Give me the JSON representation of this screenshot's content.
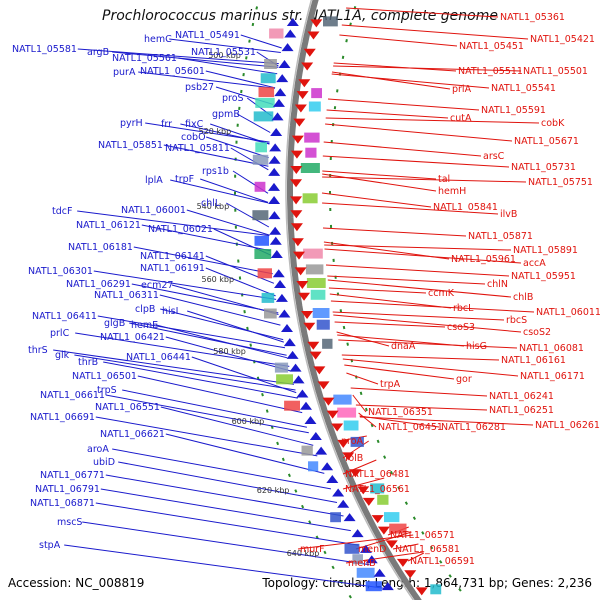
{
  "title": "Prochlorococcus marinus str. NATL1A, complete genome",
  "footer": {
    "accession": "Accession: NC_008819",
    "stats": "Topology: circular; Length: 1,864,731 bp; Genes: 2,236"
  },
  "colors": {
    "forward": "#1a1acc",
    "reverse": "#e0140e",
    "backbone": "#7a7a7a",
    "tick": "#2a8a2a"
  },
  "kbp_markers": [
    "500 kbp",
    "520 kbp",
    "540 kbp",
    "560 kbp",
    "580 kbp",
    "600 kbp",
    "620 kbp",
    "640 kbp"
  ],
  "forward_labels": [
    "NATL1_05491",
    "hemC",
    "NATL1_05531",
    "NATL1_05581",
    "argB",
    "NATL1_05561",
    "purA",
    "NATL1_05601",
    "psb27",
    "proS",
    "gpmB",
    "pyrH",
    "frr",
    "fixC",
    "cobO",
    "NATL1_05851",
    "NATL1_05811",
    "rps1b",
    "lplA",
    "trpF",
    "chlL",
    "tdcF",
    "NATL1_06001",
    "NATL1_06121",
    "NATL1_06021",
    "NATL1_06181",
    "NATL1_06141",
    "NATL1_06191",
    "NATL1_06301",
    "NATL1_06291",
    "ecm27",
    "NATL1_06311",
    "clpB",
    "hisI",
    "NATL1_06411",
    "glgB",
    "hemE",
    "prlC",
    "NATL1_06421",
    "thrS",
    "glk",
    "NATL1_06441",
    "thrB",
    "NATL1_06501",
    "trpS",
    "NATL1_06611",
    "NATL1_06551",
    "NATL1_06691",
    "NATL1_06621",
    "aroA",
    "ubiD",
    "NATL1_06771",
    "NATL1_06791",
    "NATL1_06871",
    "mscS",
    "stpA"
  ],
  "reverse_labels": [
    "NATL1_05361",
    "NATL1_05421",
    "NATL1_05451",
    "NATL1_05511",
    "NATL1_05501",
    "prlA",
    "NATL1_05541",
    "NATL1_05591",
    "cutA",
    "cobK",
    "NATL1_05671",
    "arsC",
    "NATL1_05731",
    "tal",
    "NATL1_05751",
    "hemH",
    "NATL1_05841",
    "ilvB",
    "NATL1_05871",
    "NATL1_05891",
    "NATL1_05961",
    "accA",
    "NATL1_05951",
    "chlN",
    "ccmK",
    "chlB",
    "rbcL",
    "NATL1_06011",
    "rbcS",
    "csoS3",
    "csoS2",
    "dnaA",
    "hisG",
    "NATL1_06081",
    "NATL1_06161",
    "NATL1_06171",
    "gor",
    "trpA",
    "NATL1_06241",
    "NATL1_06251",
    "NATL1_06351",
    "NATL1_06451",
    "NATL1_06281",
    "NATL1_06261",
    "proA",
    "folB",
    "NATL1_06481",
    "NATL1_06561",
    "NATL1_06571",
    "NATL1_06581",
    "menD",
    "murF",
    "menB",
    "NATL1_06591"
  ]
}
